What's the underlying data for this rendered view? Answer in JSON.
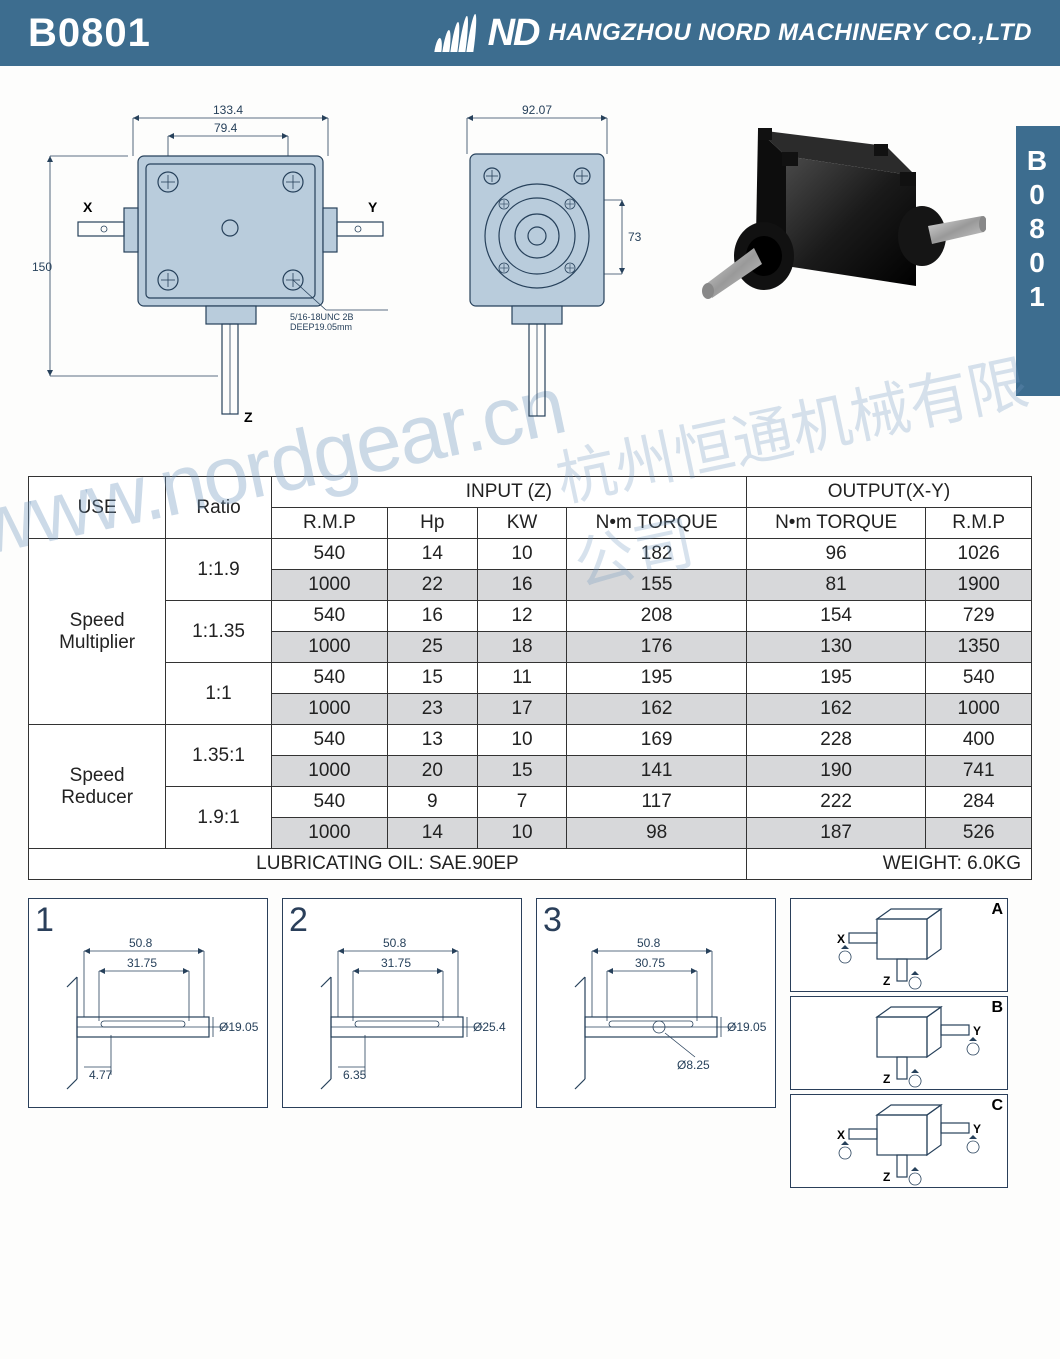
{
  "header": {
    "model": "B0801",
    "logo_text": "ND",
    "company": "HANGZHOU NORD MACHINERY CO.,LTD",
    "header_bg": "#3d6d8f",
    "header_fg": "#ffffff"
  },
  "side_tab": {
    "chars": [
      "B",
      "0",
      "8",
      "0",
      "1"
    ]
  },
  "drawings": {
    "front": {
      "dim_top_outer": "133.4",
      "dim_top_inner": "79.4",
      "dim_left_height": "150",
      "label_x": "X",
      "label_y": "Y",
      "label_z": "Z",
      "thread_note_l1": "5/16-18UNC 2B",
      "thread_note_l2": "DEEP19.05mm"
    },
    "side": {
      "dim_top": "92.07",
      "dim_right": "73"
    },
    "stroke_color": "#27415b",
    "fill_color": "#b9ccdc"
  },
  "spec_table": {
    "headers": {
      "use": "USE",
      "ratio": "Ratio",
      "input_group": "INPUT (Z)",
      "output_group": "OUTPUT(X-Y)",
      "rmp": "R.M.P",
      "hp": "Hp",
      "kw": "KW",
      "nm_torque": "N•m TORQUE",
      "out_nm_torque": "N•m TORQUE",
      "out_rmp": "R.M.P"
    },
    "groups": [
      {
        "use": "Speed Multiplier",
        "ratios": [
          {
            "ratio": "1:1.9",
            "rows": [
              {
                "rmp": "540",
                "hp": "14",
                "kw": "10",
                "t_in": "182",
                "t_out": "96",
                "rmp_out": "1026",
                "shade": false
              },
              {
                "rmp": "1000",
                "hp": "22",
                "kw": "16",
                "t_in": "155",
                "t_out": "81",
                "rmp_out": "1900",
                "shade": true
              }
            ]
          },
          {
            "ratio": "1:1.35",
            "rows": [
              {
                "rmp": "540",
                "hp": "16",
                "kw": "12",
                "t_in": "208",
                "t_out": "154",
                "rmp_out": "729",
                "shade": false
              },
              {
                "rmp": "1000",
                "hp": "25",
                "kw": "18",
                "t_in": "176",
                "t_out": "130",
                "rmp_out": "1350",
                "shade": true
              }
            ]
          },
          {
            "ratio": "1:1",
            "rows": [
              {
                "rmp": "540",
                "hp": "15",
                "kw": "11",
                "t_in": "195",
                "t_out": "195",
                "rmp_out": "540",
                "shade": false
              },
              {
                "rmp": "1000",
                "hp": "23",
                "kw": "17",
                "t_in": "162",
                "t_out": "162",
                "rmp_out": "1000",
                "shade": true
              }
            ]
          }
        ]
      },
      {
        "use": "Speed Reducer",
        "ratios": [
          {
            "ratio": "1.35:1",
            "rows": [
              {
                "rmp": "540",
                "hp": "13",
                "kw": "10",
                "t_in": "169",
                "t_out": "228",
                "rmp_out": "400",
                "shade": false
              },
              {
                "rmp": "1000",
                "hp": "20",
                "kw": "15",
                "t_in": "141",
                "t_out": "190",
                "rmp_out": "741",
                "shade": true
              }
            ]
          },
          {
            "ratio": "1.9:1",
            "rows": [
              {
                "rmp": "540",
                "hp": "9",
                "kw": "7",
                "t_in": "117",
                "t_out": "222",
                "rmp_out": "284",
                "shade": false
              },
              {
                "rmp": "1000",
                "hp": "14",
                "kw": "10",
                "t_in": "98",
                "t_out": "187",
                "rmp_out": "526",
                "shade": true
              }
            ]
          }
        ]
      }
    ],
    "footer": {
      "oil": "LUBRICATING OIL: SAE.90EP",
      "weight": "WEIGHT: 6.0KG"
    },
    "shade_color": "#d7d8da",
    "border_color": "#333333",
    "font_size_pt": 14
  },
  "shaft_details": {
    "boxes": [
      {
        "num": "1",
        "d_outer": "50.8",
        "d_inner": "31.75",
        "dia": "Ø19.05",
        "key": "4.77"
      },
      {
        "num": "2",
        "d_outer": "50.8",
        "d_inner": "31.75",
        "dia": "Ø25.4",
        "key": "6.35"
      },
      {
        "num": "3",
        "d_outer": "50.8",
        "d_inner": "30.75",
        "dia": "Ø19.05",
        "hole": "Ø8.25"
      }
    ]
  },
  "configs": {
    "items": [
      {
        "label": "A",
        "left": "X",
        "bottom": "Z",
        "right": ""
      },
      {
        "label": "B",
        "left": "",
        "bottom": "Z",
        "right": "Y"
      },
      {
        "label": "C",
        "left": "X",
        "bottom": "Z",
        "right": "Y"
      }
    ]
  },
  "watermark": {
    "url": "www.nordgear.cn",
    "cn": "杭州恒通机械有限公司"
  }
}
